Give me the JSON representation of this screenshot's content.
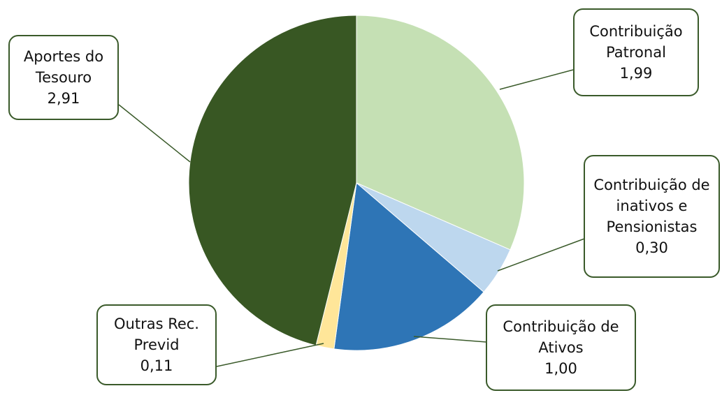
{
  "chart_data": {
    "type": "pie",
    "categories": [
      "Contribuição Patronal",
      "Contribuição de inativos e Pensionistas",
      "Contribuição de Ativos",
      "Outras Rec. Previd",
      "Aportes do Tesouro"
    ],
    "values": [
      1.99,
      0.3,
      1.0,
      0.11,
      2.91
    ],
    "value_labels": [
      "1,99",
      "0,30",
      "1,00",
      "0,11",
      "2,91"
    ],
    "colors": [
      "#c5e0b4",
      "#bdd7ee",
      "#2e75b6",
      "#ffe699",
      "#385723"
    ]
  }
}
